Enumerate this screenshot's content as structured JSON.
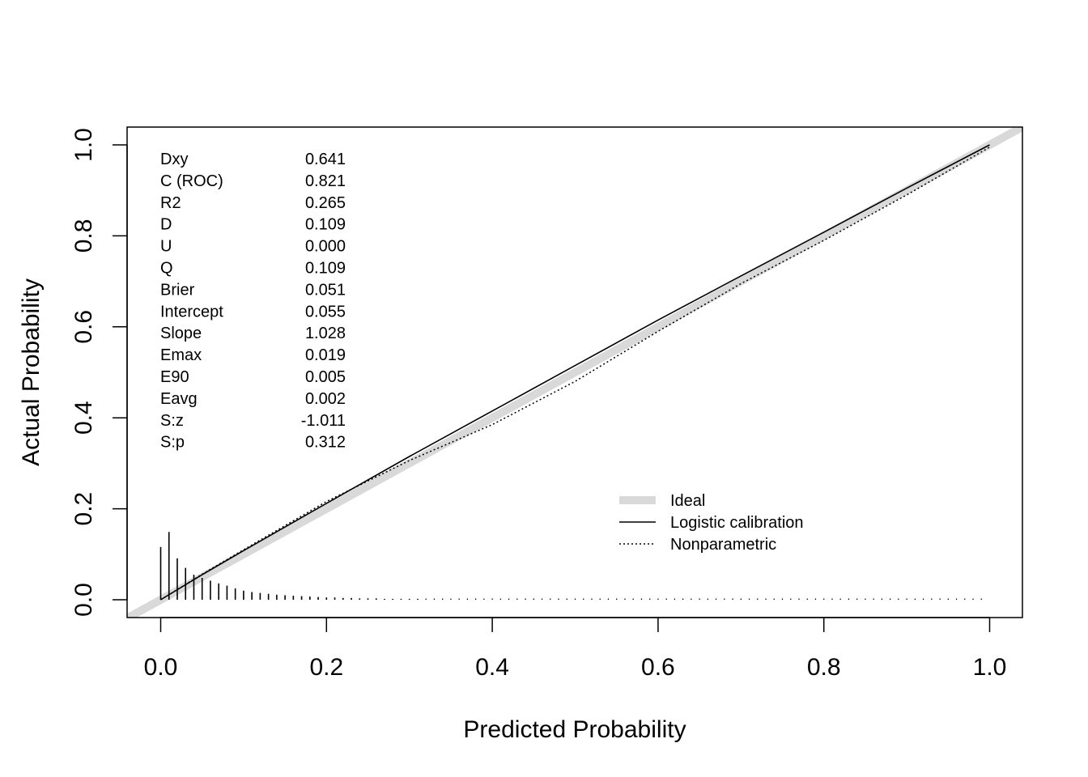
{
  "chart_data": {
    "type": "line",
    "title": "",
    "xlabel": "Predicted Probability",
    "ylabel": "Actual Probability",
    "xlim": [
      -0.04,
      1.04
    ],
    "ylim": [
      -0.04,
      1.04
    ],
    "x_ticks": [
      "0.0",
      "0.2",
      "0.4",
      "0.6",
      "0.8",
      "1.0"
    ],
    "y_ticks": [
      "0.0",
      "0.2",
      "0.4",
      "0.6",
      "0.8",
      "1.0"
    ],
    "grid": false,
    "legend_position": "bottom-right",
    "colors": {
      "ideal": "#d9d9d9",
      "logistic": "#000000",
      "nonparametric": "#000000"
    },
    "series": [
      {
        "name": "Ideal",
        "style": "thick-gray",
        "x": [
          -0.04,
          1.04
        ],
        "y": [
          -0.04,
          1.04
        ]
      },
      {
        "name": "Logistic calibration",
        "style": "solid",
        "x": [
          0.0,
          0.05,
          0.1,
          0.2,
          0.3,
          0.4,
          0.5,
          0.6,
          0.7,
          0.8,
          0.9,
          1.0
        ],
        "y": [
          0.0,
          0.055,
          0.108,
          0.212,
          0.315,
          0.415,
          0.515,
          0.615,
          0.712,
          0.808,
          0.905,
          1.0
        ]
      },
      {
        "name": "Nonparametric",
        "style": "dotted",
        "x": [
          0.0,
          0.05,
          0.1,
          0.2,
          0.3,
          0.4,
          0.5,
          0.6,
          0.7,
          0.8,
          0.9,
          1.0
        ],
        "y": [
          0.0,
          0.056,
          0.11,
          0.216,
          0.306,
          0.385,
          0.48,
          0.59,
          0.695,
          0.79,
          0.89,
          0.995
        ]
      }
    ],
    "spike_histogram": {
      "x": [
        0.0,
        0.01,
        0.02,
        0.03,
        0.04,
        0.05,
        0.06,
        0.07,
        0.08,
        0.09,
        0.1,
        0.11,
        0.12,
        0.13,
        0.14,
        0.15,
        0.16,
        0.17,
        0.18,
        0.19,
        0.2,
        0.21,
        0.22,
        0.23,
        0.24,
        0.25,
        0.26,
        0.27,
        0.28,
        0.29,
        0.3,
        0.31
      ],
      "heights": [
        0.116,
        0.149,
        0.091,
        0.07,
        0.055,
        0.048,
        0.042,
        0.036,
        0.031,
        0.025,
        0.02,
        0.017,
        0.015,
        0.013,
        0.011,
        0.01,
        0.009,
        0.008,
        0.007,
        0.006,
        0.005,
        0.005,
        0.004,
        0.004,
        0.003,
        0.003,
        0.003,
        0.002,
        0.002,
        0.002,
        0.002,
        0.002
      ],
      "sparse_range": [
        0.32,
        0.99
      ],
      "sparse_step": 0.01
    },
    "stats": [
      {
        "label": "Dxy",
        "value": "0.641"
      },
      {
        "label": "C (ROC)",
        "value": "0.821"
      },
      {
        "label": "R2",
        "value": "0.265"
      },
      {
        "label": "D",
        "value": "0.109"
      },
      {
        "label": "U",
        "value": "0.000"
      },
      {
        "label": "Q",
        "value": "0.109"
      },
      {
        "label": "Brier",
        "value": "0.051"
      },
      {
        "label": "Intercept",
        "value": "0.055"
      },
      {
        "label": "Slope",
        "value": "1.028"
      },
      {
        "label": "Emax",
        "value": "0.019"
      },
      {
        "label": "E90",
        "value": "0.005"
      },
      {
        "label": "Eavg",
        "value": "0.002"
      },
      {
        "label": "S:z",
        "value": "-1.011"
      },
      {
        "label": "S:p",
        "value": "0.312"
      }
    ],
    "legend": [
      {
        "label": "Ideal",
        "style": "thick-gray"
      },
      {
        "label": "Logistic calibration",
        "style": "solid"
      },
      {
        "label": "Nonparametric",
        "style": "dotted"
      }
    ]
  }
}
